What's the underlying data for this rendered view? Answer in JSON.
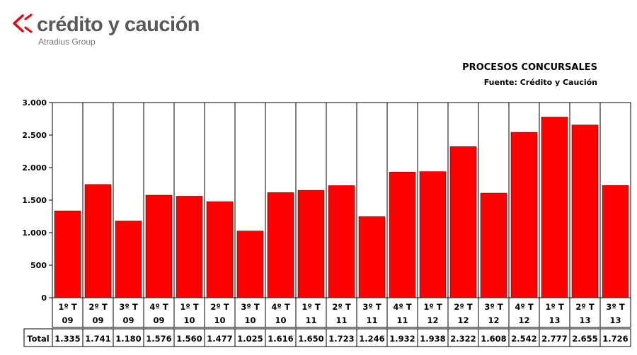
{
  "header": {
    "brand": "crédito y caución",
    "brand_sub": "Atradius Group",
    "logo_color": "#e30613"
  },
  "chart_data": {
    "type": "bar",
    "title": "PROCESOS CONCURSALES",
    "subtitle": "Fuente: Crédito y Caución",
    "categories": [
      [
        "1º T",
        "09"
      ],
      [
        "2º T",
        "09"
      ],
      [
        "3º T",
        "09"
      ],
      [
        "4º T",
        "09"
      ],
      [
        "1º T",
        "10"
      ],
      [
        "2º T",
        "10"
      ],
      [
        "3º T",
        "10"
      ],
      [
        "4º T",
        "10"
      ],
      [
        "1º T",
        "11"
      ],
      [
        "2º T",
        "11"
      ],
      [
        "3º T",
        "11"
      ],
      [
        "4º T",
        "11"
      ],
      [
        "1º T",
        "12"
      ],
      [
        "2º T",
        "12"
      ],
      [
        "3º T",
        "12"
      ],
      [
        "4º T",
        "12"
      ],
      [
        "1º T",
        "13"
      ],
      [
        "2º T",
        "13"
      ],
      [
        "3º T",
        "13"
      ]
    ],
    "series": [
      {
        "name": "Total",
        "values": [
          1335,
          1741,
          1180,
          1576,
          1560,
          1477,
          1025,
          1616,
          1650,
          1723,
          1246,
          1932,
          1938,
          2322,
          1608,
          2542,
          2777,
          2655,
          1726
        ],
        "value_labels": [
          "1.335",
          "1.741",
          "1.180",
          "1.576",
          "1.560",
          "1.477",
          "1.025",
          "1.616",
          "1.650",
          "1.723",
          "1.246",
          "1.932",
          "1.938",
          "2.322",
          "1.608",
          "2.542",
          "2.777",
          "2.655",
          "1.726"
        ],
        "color": "#ff0000"
      }
    ],
    "ylim": [
      0,
      3000
    ],
    "yticks": [
      0,
      500,
      1000,
      1500,
      2000,
      2500,
      3000
    ],
    "ytick_labels": [
      "0",
      "500",
      "1.000",
      "1.500",
      "2.000",
      "2.500",
      "3.000"
    ],
    "grid": "vertical category separators",
    "table_below": true
  }
}
